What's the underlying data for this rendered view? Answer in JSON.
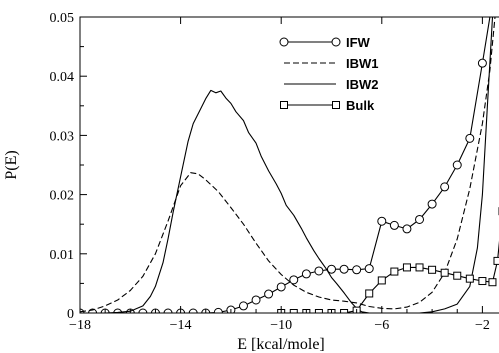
{
  "chart_data": {
    "type": "line",
    "xlabel": "E [kcal/mole]",
    "ylabel": "P(E)",
    "xlim": [
      -18,
      -1.3
    ],
    "ylim": [
      0,
      0.05
    ],
    "x_ticks": [
      -18,
      -14,
      -10,
      -6,
      -2
    ],
    "y_ticks": [
      0,
      0.01,
      0.02,
      0.03,
      0.04,
      0.05
    ],
    "x_tick_labels": [
      "−18",
      "−14",
      "−10",
      "−6",
      "−2"
    ],
    "y_tick_labels": [
      "0",
      "0.01",
      "0.02",
      "0.03",
      "0.04",
      "0.05"
    ],
    "grid": false,
    "legend_position": "top-right",
    "series": [
      {
        "name": "IFW",
        "line_style": "solid",
        "marker": "circle",
        "points": [
          [
            -18.0,
            0.0
          ],
          [
            -17.5,
            0.0
          ],
          [
            -17.0,
            0.0
          ],
          [
            -16.5,
            0.0
          ],
          [
            -16.0,
            0.0
          ],
          [
            -15.5,
            0.0
          ],
          [
            -15.0,
            0.0
          ],
          [
            -14.5,
            0.0
          ],
          [
            -14.0,
            0.0
          ],
          [
            -13.5,
            0.0
          ],
          [
            -13.0,
            0.0
          ],
          [
            -12.5,
            0.0001
          ],
          [
            -12.0,
            0.0005
          ],
          [
            -11.5,
            0.0012
          ],
          [
            -11.0,
            0.0022
          ],
          [
            -10.5,
            0.0032
          ],
          [
            -10.0,
            0.0044
          ],
          [
            -9.5,
            0.0056
          ],
          [
            -9.0,
            0.0066
          ],
          [
            -8.5,
            0.0071
          ],
          [
            -8.0,
            0.0074
          ],
          [
            -7.5,
            0.0074
          ],
          [
            -7.0,
            0.0073
          ],
          [
            -6.5,
            0.0075
          ],
          [
            -6.0,
            0.0155
          ],
          [
            -5.5,
            0.0148
          ],
          [
            -5.0,
            0.0142
          ],
          [
            -4.5,
            0.0158
          ],
          [
            -4.0,
            0.0184
          ],
          [
            -3.5,
            0.0213
          ],
          [
            -3.0,
            0.025
          ],
          [
            -2.5,
            0.0295
          ],
          [
            -2.0,
            0.0422
          ],
          [
            -1.7,
            0.05
          ]
        ],
        "marker_x": [
          -18.0,
          -17.5,
          -17.0,
          -16.5,
          -16.0,
          -15.5,
          -15.0,
          -14.5,
          -14.0,
          -13.5,
          -13.0,
          -12.5,
          -12.0,
          -11.5,
          -11.0,
          -10.5,
          -10.0,
          -9.5,
          -9.0,
          -8.5,
          -8.0,
          -7.5,
          -7.0,
          -6.5,
          -6.0,
          -5.5,
          -5.0,
          -4.5,
          -4.0,
          -3.5,
          -3.0,
          -2.5,
          -2.0
        ]
      },
      {
        "name": "IBW1",
        "line_style": "dashed",
        "marker": "none",
        "points": [
          [
            -18.0,
            0.0002
          ],
          [
            -17.5,
            0.0005
          ],
          [
            -17.0,
            0.0012
          ],
          [
            -16.5,
            0.0022
          ],
          [
            -16.0,
            0.0038
          ],
          [
            -15.5,
            0.0062
          ],
          [
            -15.0,
            0.01
          ],
          [
            -14.5,
            0.0155
          ],
          [
            -14.0,
            0.0215
          ],
          [
            -13.6,
            0.0237
          ],
          [
            -13.3,
            0.0235
          ],
          [
            -13.0,
            0.0225
          ],
          [
            -12.5,
            0.0205
          ],
          [
            -12.0,
            0.0178
          ],
          [
            -11.5,
            0.015
          ],
          [
            -11.0,
            0.0118
          ],
          [
            -10.5,
            0.0088
          ],
          [
            -10.0,
            0.0065
          ],
          [
            -9.5,
            0.0047
          ],
          [
            -9.0,
            0.0035
          ],
          [
            -8.5,
            0.0027
          ],
          [
            -8.0,
            0.0022
          ],
          [
            -7.5,
            0.002
          ],
          [
            -7.0,
            0.0017
          ],
          [
            -6.5,
            0.0011
          ],
          [
            -6.0,
            0.0008
          ],
          [
            -5.5,
            0.0007
          ],
          [
            -5.0,
            0.001
          ],
          [
            -4.5,
            0.0018
          ],
          [
            -4.0,
            0.0035
          ],
          [
            -3.5,
            0.0068
          ],
          [
            -3.0,
            0.0125
          ],
          [
            -2.5,
            0.021
          ],
          [
            -2.0,
            0.032
          ],
          [
            -1.7,
            0.041
          ],
          [
            -1.5,
            0.05
          ]
        ]
      },
      {
        "name": "IBW2",
        "line_style": "solid",
        "marker": "none",
        "points": [
          [
            -18.0,
            0.0
          ],
          [
            -17.0,
            0.0
          ],
          [
            -16.5,
            0.0001
          ],
          [
            -16.0,
            0.0003
          ],
          [
            -15.5,
            0.0012
          ],
          [
            -15.2,
            0.0028
          ],
          [
            -15.0,
            0.0045
          ],
          [
            -14.7,
            0.0085
          ],
          [
            -14.5,
            0.0125
          ],
          [
            -14.3,
            0.017
          ],
          [
            -14.0,
            0.023
          ],
          [
            -13.7,
            0.029
          ],
          [
            -13.5,
            0.032
          ],
          [
            -13.2,
            0.0345
          ],
          [
            -13.0,
            0.0362
          ],
          [
            -12.8,
            0.0376
          ],
          [
            -12.6,
            0.0372
          ],
          [
            -12.4,
            0.0375
          ],
          [
            -12.2,
            0.0363
          ],
          [
            -12.0,
            0.0354
          ],
          [
            -11.8,
            0.034
          ],
          [
            -11.5,
            0.0325
          ],
          [
            -11.3,
            0.0305
          ],
          [
            -11.0,
            0.0287
          ],
          [
            -10.8,
            0.0265
          ],
          [
            -10.5,
            0.024
          ],
          [
            -10.2,
            0.0218
          ],
          [
            -10.0,
            0.0202
          ],
          [
            -9.8,
            0.0182
          ],
          [
            -9.5,
            0.0165
          ],
          [
            -9.2,
            0.0143
          ],
          [
            -9.0,
            0.0127
          ],
          [
            -8.7,
            0.0105
          ],
          [
            -8.5,
            0.0092
          ],
          [
            -8.2,
            0.0074
          ],
          [
            -8.0,
            0.006
          ],
          [
            -7.8,
            0.005
          ],
          [
            -7.5,
            0.0034
          ],
          [
            -7.2,
            0.0017
          ],
          [
            -7.0,
            0.0008
          ],
          [
            -6.8,
            0.0002
          ],
          [
            -6.5,
            0.0
          ],
          [
            -5.5,
            0.0
          ],
          [
            -4.5,
            0.0
          ],
          [
            -4.0,
            0.0002
          ],
          [
            -3.5,
            0.0007
          ],
          [
            -3.0,
            0.0015
          ],
          [
            -2.5,
            0.0045
          ],
          [
            -2.2,
            0.011
          ],
          [
            -2.0,
            0.02
          ],
          [
            -1.8,
            0.035
          ],
          [
            -1.6,
            0.05
          ]
        ]
      },
      {
        "name": "Bulk",
        "line_style": "solid",
        "marker": "square",
        "points": [
          [
            -10.0,
            0.0
          ],
          [
            -9.5,
            0.0
          ],
          [
            -9.0,
            0.0
          ],
          [
            -8.5,
            0.0
          ],
          [
            -8.0,
            0.0
          ],
          [
            -7.5,
            0.0
          ],
          [
            -7.0,
            0.0004
          ],
          [
            -6.5,
            0.0033
          ],
          [
            -6.0,
            0.0055
          ],
          [
            -5.5,
            0.007
          ],
          [
            -5.0,
            0.0077
          ],
          [
            -4.5,
            0.0077
          ],
          [
            -4.0,
            0.0073
          ],
          [
            -3.5,
            0.0068
          ],
          [
            -3.0,
            0.0063
          ],
          [
            -2.5,
            0.0058
          ],
          [
            -2.0,
            0.0054
          ],
          [
            -1.6,
            0.0052
          ],
          [
            -1.4,
            0.0088
          ],
          [
            -1.2,
            0.0172
          ],
          [
            -1.0,
            0.05
          ]
        ],
        "marker_x": [
          -10.0,
          -9.5,
          -9.0,
          -8.5,
          -8.0,
          -7.5,
          -7.0,
          -6.5,
          -6.0,
          -5.5,
          -5.0,
          -4.5,
          -4.0,
          -3.5,
          -3.0,
          -2.5,
          -2.0,
          -1.6,
          -1.4,
          -1.2
        ]
      }
    ]
  }
}
